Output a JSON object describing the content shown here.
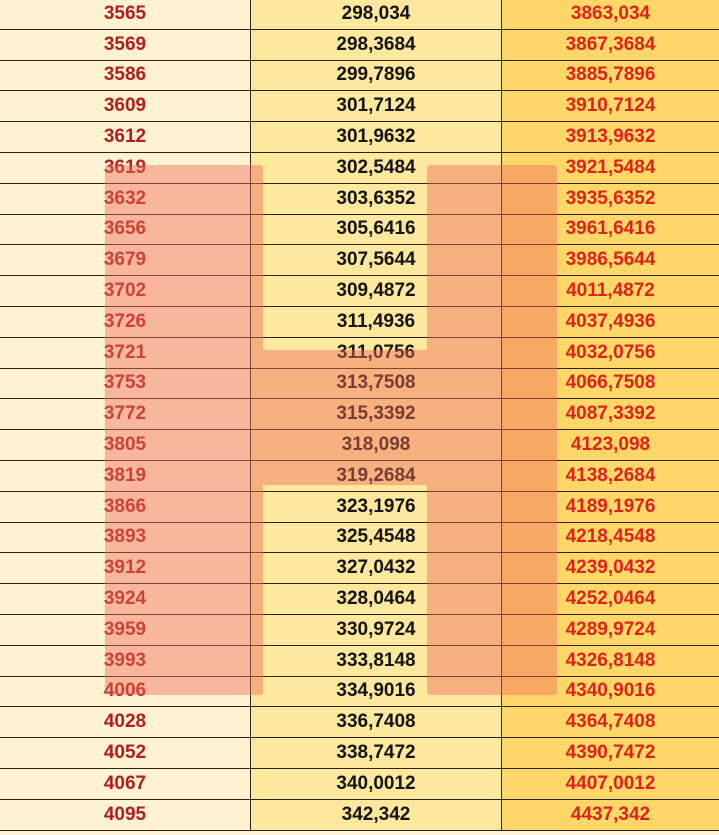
{
  "colors": {
    "col1_bg": "#fff2d2",
    "col2_bg": "#fee89e",
    "col3_bg": "#fdd868",
    "col1_text": "#b01e1e",
    "col2_text": "#151515",
    "col3_text": "#e0221c",
    "watermark": "rgba(240,110,90,0.45)"
  },
  "table": {
    "rows": [
      {
        "a": "3565",
        "b": "298,034",
        "c": "3863,034"
      },
      {
        "a": "3569",
        "b": "298,3684",
        "c": "3867,3684"
      },
      {
        "a": "3586",
        "b": "299,7896",
        "c": "3885,7896"
      },
      {
        "a": "3609",
        "b": "301,7124",
        "c": "3910,7124"
      },
      {
        "a": "3612",
        "b": "301,9632",
        "c": "3913,9632"
      },
      {
        "a": "3619",
        "b": "302,5484",
        "c": "3921,5484"
      },
      {
        "a": "3632",
        "b": "303,6352",
        "c": "3935,6352"
      },
      {
        "a": "3656",
        "b": "305,6416",
        "c": "3961,6416"
      },
      {
        "a": "3679",
        "b": "307,5644",
        "c": "3986,5644"
      },
      {
        "a": "3702",
        "b": "309,4872",
        "c": "4011,4872"
      },
      {
        "a": "3726",
        "b": "311,4936",
        "c": "4037,4936"
      },
      {
        "a": "3721",
        "b": "311,0756",
        "c": "4032,0756"
      },
      {
        "a": "3753",
        "b": "313,7508",
        "c": "4066,7508"
      },
      {
        "a": "3772",
        "b": "315,3392",
        "c": "4087,3392"
      },
      {
        "a": "3805",
        "b": "318,098",
        "c": "4123,098"
      },
      {
        "a": "3819",
        "b": "319,2684",
        "c": "4138,2684"
      },
      {
        "a": "3866",
        "b": "323,1976",
        "c": "4189,1976"
      },
      {
        "a": "3893",
        "b": "325,4548",
        "c": "4218,4548"
      },
      {
        "a": "3912",
        "b": "327,0432",
        "c": "4239,0432"
      },
      {
        "a": "3924",
        "b": "328,0464",
        "c": "4252,0464"
      },
      {
        "a": "3959",
        "b": "330,9724",
        "c": "4289,9724"
      },
      {
        "a": "3993",
        "b": "333,8148",
        "c": "4326,8148"
      },
      {
        "a": "4006",
        "b": "334,9016",
        "c": "4340,9016"
      },
      {
        "a": "4028",
        "b": "336,7408",
        "c": "4364,7408"
      },
      {
        "a": "4052",
        "b": "338,7472",
        "c": "4390,7472"
      },
      {
        "a": "4067",
        "b": "340,0012",
        "c": "4407,0012"
      },
      {
        "a": "4095",
        "b": "342,342",
        "c": "4437,342"
      }
    ]
  }
}
